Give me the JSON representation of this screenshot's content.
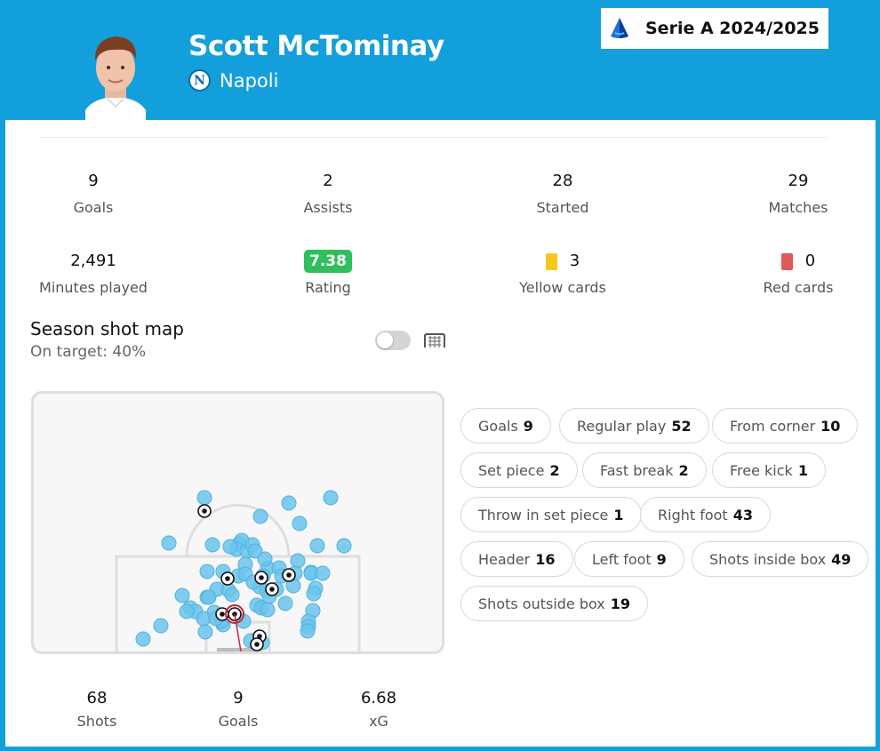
{
  "player": {
    "name": "Scott McTominay",
    "club": "Napoli",
    "club_badge_letter": "N"
  },
  "league": {
    "name": "Serie A 2024/2025"
  },
  "stats": {
    "goals": {
      "value": "9",
      "label": "Goals"
    },
    "assists": {
      "value": "2",
      "label": "Assists"
    },
    "started": {
      "value": "28",
      "label": "Started"
    },
    "matches": {
      "value": "29",
      "label": "Matches"
    },
    "minutes": {
      "value": "2,491",
      "label": "Minutes played"
    },
    "rating": {
      "value": "7.38",
      "label": "Rating"
    },
    "yellow": {
      "value": "3",
      "label": "Yellow cards"
    },
    "red": {
      "value": "0",
      "label": "Red cards"
    }
  },
  "shotmap": {
    "title": "Season shot map",
    "on_target": "On target: 40%",
    "toggle_on": false
  },
  "filters": [
    {
      "label": "Goals",
      "count": "9"
    },
    {
      "label": "Regular play",
      "count": "52"
    },
    {
      "label": "From corner",
      "count": "10"
    },
    {
      "label": "Set piece",
      "count": "2"
    },
    {
      "label": "Fast break",
      "count": "2"
    },
    {
      "label": "Free kick",
      "count": "1"
    },
    {
      "label": "Throw in set piece",
      "count": "1"
    },
    {
      "label": "Right foot",
      "count": "43"
    },
    {
      "label": "Header",
      "count": "16"
    },
    {
      "label": "Left foot",
      "count": "9"
    },
    {
      "label": "Shots inside box",
      "count": "49"
    },
    {
      "label": "Shots outside box",
      "count": "19"
    }
  ],
  "summary": {
    "shots": {
      "value": "68",
      "label": "Shots"
    },
    "goals": {
      "value": "9",
      "label": "Goals"
    },
    "xg": {
      "value": "6.68",
      "label": "xG"
    }
  },
  "colors": {
    "header_bg": "#139fdc",
    "shot_color": "#6cc4ec",
    "rating_bg": "#2fbf5c",
    "yellow_card": "#f6c919",
    "red_card": "#e05858",
    "selected_shot": "#d1213a"
  }
}
